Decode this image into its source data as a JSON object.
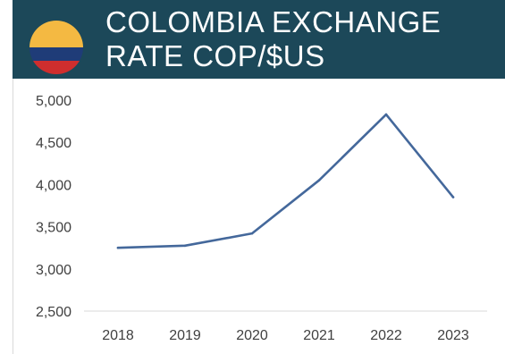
{
  "header": {
    "title_line1": "COLOMBIA EXCHANGE",
    "title_line2": "RATE COP/$US",
    "flag_icon": "colombia-flag-icon",
    "background_color": "#1c4859"
  },
  "colors": {
    "line": "#44689b",
    "flag_yellow": "#f4b942",
    "flag_blue": "#1f3c78",
    "flag_red": "#cf2e2e"
  },
  "chart_data": {
    "type": "line",
    "title": "COLOMBIA EXCHANGE RATE COP/$US",
    "xlabel": "",
    "ylabel": "",
    "categories": [
      "2018",
      "2019",
      "2020",
      "2021",
      "2022",
      "2023"
    ],
    "series": [
      {
        "values": [
          3250,
          3275,
          3420,
          4050,
          4830,
          3850
        ]
      }
    ],
    "ylim": [
      2500,
      5000
    ],
    "yticks": [
      "2,500",
      "3,000",
      "3,500",
      "4,000",
      "4,500",
      "5,000"
    ],
    "grid": false,
    "legend": "none"
  }
}
